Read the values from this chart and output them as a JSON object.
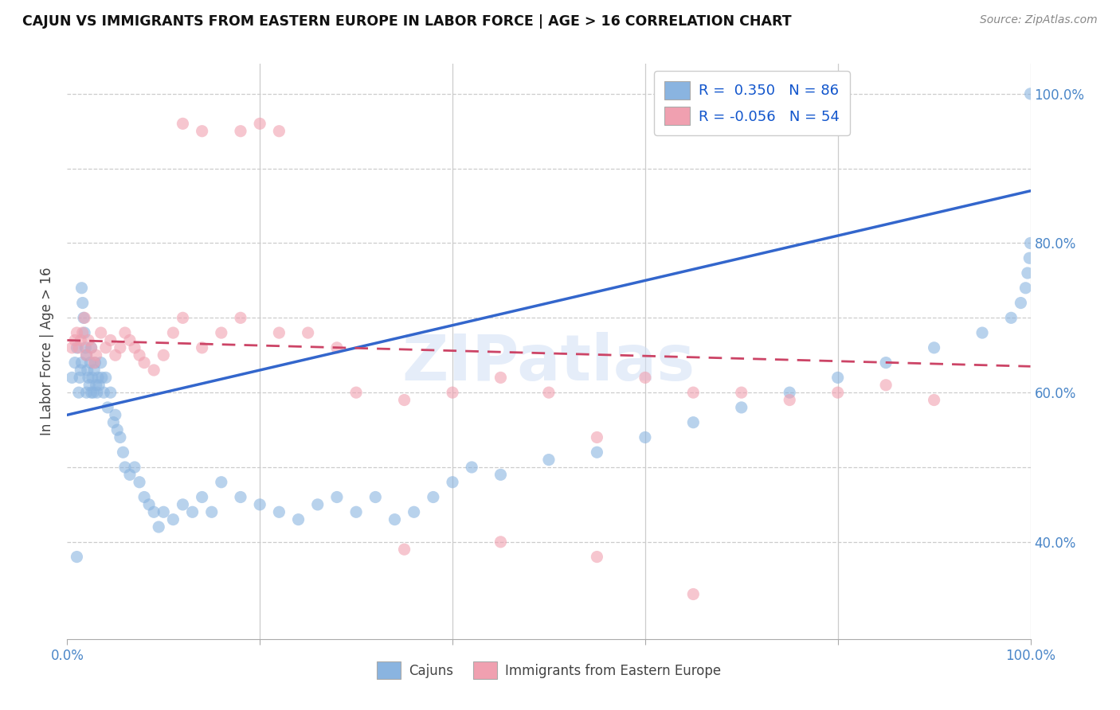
{
  "title": "CAJUN VS IMMIGRANTS FROM EASTERN EUROPE IN LABOR FORCE | AGE > 16 CORRELATION CHART",
  "source": "Source: ZipAtlas.com",
  "ylabel": "In Labor Force | Age > 16",
  "color_cajun": "#8ab4e0",
  "color_ee": "#f0a0b0",
  "color_line_cajun": "#3366cc",
  "color_line_ee": "#cc4466",
  "watermark": "ZIPatlas",
  "cajun_line_start_y": 0.57,
  "cajun_line_end_y": 0.87,
  "ee_line_start_y": 0.67,
  "ee_line_end_y": 0.635,
  "cajun_scatter": {
    "x": [
      0.005,
      0.008,
      0.01,
      0.01,
      0.012,
      0.013,
      0.014,
      0.015,
      0.015,
      0.016,
      0.017,
      0.018,
      0.019,
      0.02,
      0.02,
      0.021,
      0.022,
      0.023,
      0.024,
      0.025,
      0.025,
      0.026,
      0.027,
      0.028,
      0.029,
      0.03,
      0.031,
      0.032,
      0.033,
      0.035,
      0.036,
      0.038,
      0.04,
      0.042,
      0.045,
      0.048,
      0.05,
      0.052,
      0.055,
      0.058,
      0.06,
      0.065,
      0.07,
      0.075,
      0.08,
      0.085,
      0.09,
      0.095,
      0.1,
      0.11,
      0.12,
      0.13,
      0.14,
      0.15,
      0.16,
      0.18,
      0.2,
      0.22,
      0.24,
      0.26,
      0.28,
      0.3,
      0.32,
      0.34,
      0.36,
      0.38,
      0.4,
      0.42,
      0.45,
      0.5,
      0.55,
      0.6,
      0.65,
      0.7,
      0.75,
      0.8,
      0.85,
      0.9,
      0.95,
      0.98,
      0.99,
      0.995,
      0.997,
      0.999,
      1.0,
      1.0
    ],
    "y": [
      0.62,
      0.64,
      0.38,
      0.66,
      0.6,
      0.62,
      0.63,
      0.64,
      0.74,
      0.72,
      0.7,
      0.68,
      0.66,
      0.65,
      0.6,
      0.63,
      0.62,
      0.61,
      0.64,
      0.6,
      0.66,
      0.62,
      0.6,
      0.63,
      0.64,
      0.61,
      0.6,
      0.62,
      0.61,
      0.64,
      0.62,
      0.6,
      0.62,
      0.58,
      0.6,
      0.56,
      0.57,
      0.55,
      0.54,
      0.52,
      0.5,
      0.49,
      0.5,
      0.48,
      0.46,
      0.45,
      0.44,
      0.42,
      0.44,
      0.43,
      0.45,
      0.44,
      0.46,
      0.44,
      0.48,
      0.46,
      0.45,
      0.44,
      0.43,
      0.45,
      0.46,
      0.44,
      0.46,
      0.43,
      0.44,
      0.46,
      0.48,
      0.5,
      0.49,
      0.51,
      0.52,
      0.54,
      0.56,
      0.58,
      0.6,
      0.62,
      0.64,
      0.66,
      0.68,
      0.7,
      0.72,
      0.74,
      0.76,
      0.78,
      0.8,
      1.0
    ]
  },
  "ee_scatter": {
    "x": [
      0.005,
      0.008,
      0.01,
      0.012,
      0.014,
      0.016,
      0.018,
      0.02,
      0.022,
      0.025,
      0.028,
      0.03,
      0.035,
      0.04,
      0.045,
      0.05,
      0.055,
      0.06,
      0.065,
      0.07,
      0.075,
      0.08,
      0.09,
      0.1,
      0.11,
      0.12,
      0.14,
      0.16,
      0.18,
      0.2,
      0.22,
      0.25,
      0.28,
      0.3,
      0.35,
      0.4,
      0.45,
      0.5,
      0.55,
      0.6,
      0.65,
      0.7,
      0.75,
      0.8,
      0.85,
      0.9,
      0.12,
      0.14,
      0.18,
      0.22,
      0.35,
      0.45,
      0.55,
      0.65
    ],
    "y": [
      0.66,
      0.67,
      0.68,
      0.66,
      0.67,
      0.68,
      0.7,
      0.65,
      0.67,
      0.66,
      0.64,
      0.65,
      0.68,
      0.66,
      0.67,
      0.65,
      0.66,
      0.68,
      0.67,
      0.66,
      0.65,
      0.64,
      0.63,
      0.65,
      0.68,
      0.7,
      0.66,
      0.68,
      0.95,
      0.96,
      0.95,
      0.68,
      0.66,
      0.6,
      0.59,
      0.6,
      0.62,
      0.6,
      0.54,
      0.62,
      0.6,
      0.6,
      0.59,
      0.6,
      0.61,
      0.59,
      0.96,
      0.95,
      0.7,
      0.68,
      0.39,
      0.4,
      0.38,
      0.33
    ]
  },
  "yticks": [
    0.4,
    0.5,
    0.6,
    0.7,
    0.8,
    0.9,
    1.0
  ],
  "ytick_labels_right": [
    "40.0%",
    "",
    "60.0%",
    "",
    "80.0%",
    "",
    "100.0%"
  ],
  "xticks": [
    0.0,
    0.2,
    0.4,
    0.6,
    0.8,
    1.0
  ],
  "xtick_labels": [
    "0.0%",
    "",
    "",
    "",
    "",
    "100.0%"
  ],
  "ylim": [
    0.27,
    1.04
  ],
  "xlim": [
    0.0,
    1.0
  ]
}
